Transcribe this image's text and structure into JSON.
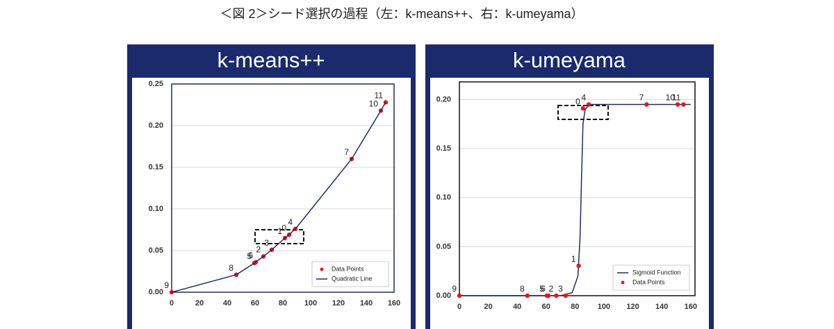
{
  "caption": "＜図 2＞シード選択の過程（左：k-means++、右：k-umeyama）",
  "chart_data": [
    {
      "type": "scatter",
      "title": "k-means++",
      "frame_color": "#1f2a6b",
      "grid": true,
      "legend": "lower right",
      "xlim": [
        0,
        160
      ],
      "xticks": [
        0,
        20,
        40,
        60,
        80,
        100,
        120,
        140,
        160
      ],
      "ylim": [
        0,
        0.25
      ],
      "yticks": [
        {
          "value": 0,
          "label": "0.00"
        },
        {
          "value": 0.05,
          "label": "0.05"
        },
        {
          "value": 0.1,
          "label": "0.10"
        },
        {
          "value": 0.15,
          "label": "0.15"
        },
        {
          "value": 0.2,
          "label": "0.20"
        },
        {
          "value": 0.25,
          "label": "0.25"
        }
      ],
      "series": [
        {
          "name": "Data Points",
          "type": "scatter",
          "color": "#e8141c",
          "labels": [
            "0",
            "1",
            "2",
            "3",
            "4",
            "5",
            "6",
            "7",
            "8",
            "9",
            "10",
            "11"
          ],
          "x": [
            84.5,
            81.5,
            66,
            72,
            89,
            59.5,
            60.5,
            129.5,
            46.5,
            0,
            150.5,
            154
          ],
          "values": [
            0.069,
            0.065,
            0.043,
            0.051,
            0.076,
            0.035,
            0.036,
            0.16,
            0.021,
            0,
            0.218,
            0.228
          ]
        },
        {
          "name": "Quadratic Line",
          "type": "line",
          "color": "#1f2a6b",
          "x": [
            0,
            46.5,
            59.5,
            66,
            72,
            81.5,
            89,
            129.5,
            150.5,
            154
          ],
          "values": [
            0,
            0.021,
            0.035,
            0.043,
            0.051,
            0.065,
            0.076,
            0.16,
            0.218,
            0.228
          ]
        }
      ]
    },
    {
      "type": "scatter",
      "title": "k-umeyama",
      "frame_color": "#111111",
      "grid": true,
      "legend": "lower right",
      "xlim": [
        0,
        163
      ],
      "xticks": [
        0,
        20,
        40,
        60,
        80,
        100,
        120,
        140,
        160
      ],
      "ylim": [
        0,
        0.218
      ],
      "yticks": [
        {
          "value": 0,
          "label": "0.00"
        },
        {
          "value": 0.05,
          "label": "0.05"
        },
        {
          "value": 0.1,
          "label": "0.10"
        },
        {
          "value": 0.15,
          "label": "0.15"
        },
        {
          "value": 0.2,
          "label": "0.20"
        }
      ],
      "series": [
        {
          "name": "Sigmoid Function",
          "type": "line",
          "color": "#1f2a6b",
          "x": [
            0,
            70,
            78,
            82,
            83.5,
            84.5,
            85.5,
            87,
            90,
            160
          ],
          "values": [
            0,
            0,
            0.003,
            0.02,
            0.06,
            0.12,
            0.175,
            0.19,
            0.195,
            0.195
          ]
        },
        {
          "name": "Data Points",
          "type": "scatter",
          "color": "#e8141c",
          "labels": [
            "0",
            "1",
            "2",
            "3",
            "4",
            "5",
            "6",
            "7",
            "8",
            "9",
            "10",
            "11"
          ],
          "x": [
            85.5,
            82.5,
            67,
            73.5,
            89.5,
            60.5,
            61.5,
            129.5,
            47,
            0,
            151,
            155
          ],
          "values": [
            0.191,
            0.0305,
            0,
            0,
            0.195,
            0,
            0,
            0.195,
            0,
            0,
            0.195,
            0.195
          ]
        }
      ]
    }
  ]
}
